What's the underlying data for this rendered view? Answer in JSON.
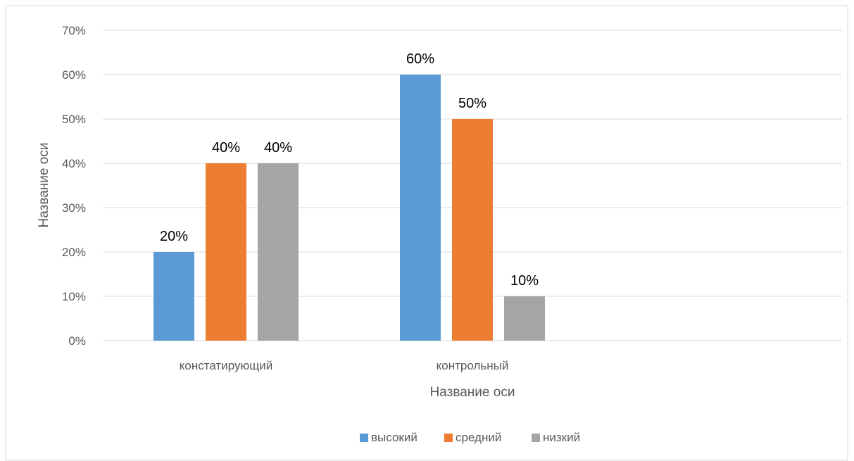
{
  "chart_data": {
    "type": "bar",
    "title": "",
    "xlabel": "Название оси",
    "ylabel": "Название оси",
    "categories": [
      "констатирующий",
      "контрольный",
      ""
    ],
    "series": [
      {
        "name": "высокий",
        "color": "#5B9BD5",
        "values": [
          20,
          60,
          null
        ],
        "labels": [
          "20%",
          "60%",
          ""
        ]
      },
      {
        "name": "средний",
        "color": "#ED7D31",
        "values": [
          40,
          50,
          null
        ],
        "labels": [
          "40%",
          "50%",
          ""
        ]
      },
      {
        "name": "низкий",
        "color": "#A5A5A5",
        "values": [
          40,
          10,
          null
        ],
        "labels": [
          "40%",
          "10%",
          ""
        ]
      }
    ],
    "ylim": [
      0,
      70
    ],
    "yticks": [
      0,
      10,
      20,
      30,
      40,
      50,
      60,
      70
    ],
    "ytick_labels": [
      "0%",
      "10%",
      "20%",
      "30%",
      "40%",
      "50%",
      "60%",
      "70%"
    ],
    "grid": true,
    "legend_position": "bottom",
    "gridline_color": "#D9D9D9",
    "text_color": "#595959",
    "label_color": "#000000"
  }
}
